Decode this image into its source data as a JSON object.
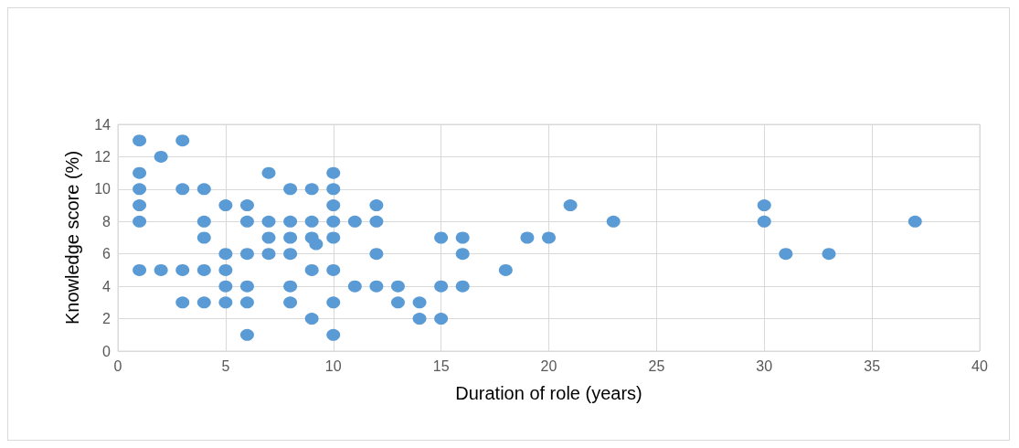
{
  "chart_data": {
    "type": "scatter",
    "xlabel": "Duration of role (years)",
    "ylabel": "Knowledge score (%)",
    "x": [
      1,
      1,
      1,
      1,
      1,
      1,
      2,
      2,
      3,
      3,
      3,
      3,
      4,
      4,
      4,
      4,
      4,
      5,
      5,
      5,
      5,
      5,
      6,
      6,
      6,
      6,
      6,
      6,
      7,
      7,
      7,
      7,
      8,
      8,
      8,
      8,
      8,
      8,
      9,
      9,
      9,
      9,
      9,
      9.2,
      10,
      10,
      10,
      10,
      10,
      10,
      10,
      10,
      11,
      11,
      12,
      12,
      12,
      12,
      13,
      13,
      14,
      14,
      15,
      15,
      15,
      16,
      16,
      16,
      18,
      19,
      20,
      21,
      23,
      30,
      30,
      31,
      33,
      37
    ],
    "values": [
      13,
      11,
      10,
      9,
      8,
      5,
      12,
      5,
      13,
      10,
      5,
      3,
      10,
      8,
      7,
      5,
      3,
      9,
      6,
      5,
      4,
      3,
      9,
      8,
      6,
      4,
      3,
      1,
      11,
      8,
      7,
      6,
      10,
      8,
      7,
      6,
      4,
      3,
      10,
      8,
      7,
      5,
      2,
      6.6,
      11,
      10,
      9,
      8,
      7,
      5,
      3,
      1,
      8,
      4,
      9,
      8,
      6,
      4,
      4,
      3,
      3,
      2,
      7,
      4,
      2,
      7,
      6,
      4,
      5,
      7,
      7,
      9,
      8,
      9,
      8,
      6,
      6,
      8
    ],
    "color": "#5b9bd5",
    "marker": "circle",
    "xlim": [
      0,
      40
    ],
    "xticks": [
      0,
      5,
      10,
      15,
      20,
      25,
      30,
      35,
      40
    ],
    "ylim": [
      0,
      14
    ],
    "yticks": [
      0,
      2,
      4,
      6,
      8,
      10,
      12,
      14
    ],
    "grid": true
  }
}
